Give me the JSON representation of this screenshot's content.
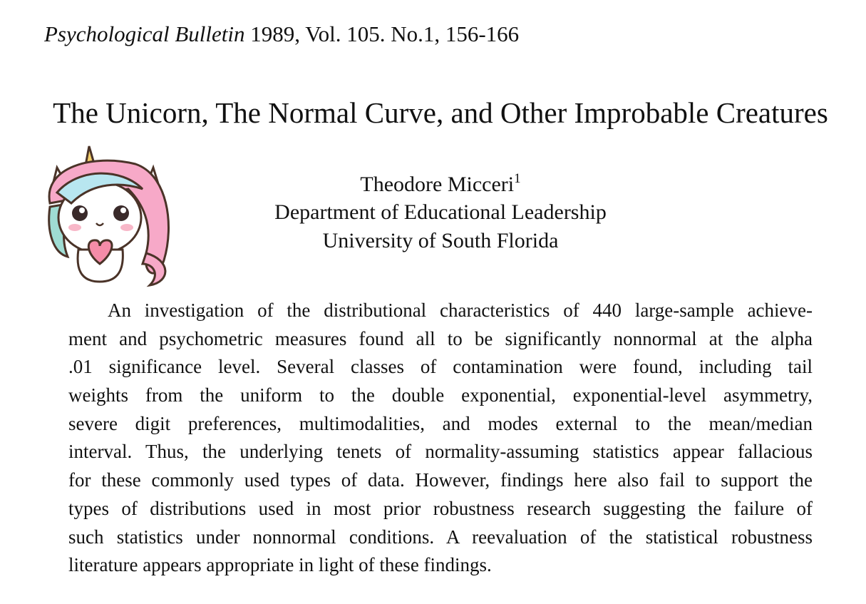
{
  "header": {
    "journal": "Psychological Bulletin",
    "citation": "1989, Vol. 105. No.1, 156-166"
  },
  "title": "The Unicorn, The Normal Curve, and Other Improbable Creatures",
  "author": {
    "name": "Theodore Micceri",
    "footnote_mark": "1",
    "department": "Department of Educational Leadership",
    "university": "University of South Florida"
  },
  "abstract": {
    "lines": [
      "An investigation of the distributional characteristics of 440 large-sample achieve-",
      "ment and psychometric measures found all to be significantly nonnormal at the alpha",
      ".01 significance level. Several classes of contamination were found, including tail",
      "weights from the uniform to the double exponential, exponential-level asymmetry,",
      "severe digit preferences, multimodalities, and modes external to the mean/median",
      "interval. Thus, the underlying tenets of normality-assuming statistics appear fallacious",
      "for these commonly used types of data. However, findings here also fail to support the",
      "types of distributions used in most prior robustness research suggesting the failure of",
      "such statistics under nonnormal conditions. A reevaluation of the statistical robustness",
      "literature appears appropriate in light of these findings."
    ]
  }
}
